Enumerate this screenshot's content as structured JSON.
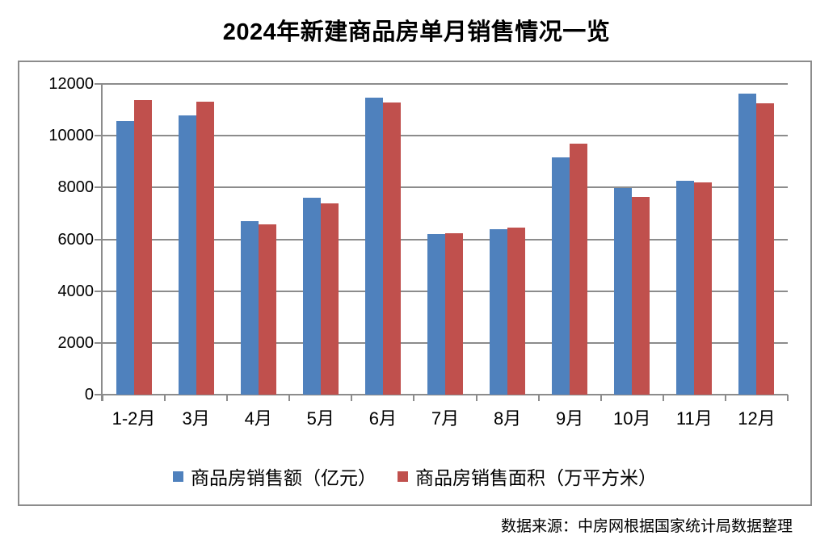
{
  "title": "2024年新建商品房单月销售情况一览",
  "source_note": "数据来源：中房网根据国家统计局数据整理",
  "chart_data": {
    "type": "bar",
    "title": "2024年新建商品房单月销售情况一览",
    "categories": [
      "1-2月",
      "3月",
      "4月",
      "5月",
      "6月",
      "7月",
      "8月",
      "9月",
      "10月",
      "11月",
      "12月"
    ],
    "series": [
      {
        "name": "商品房销售额（亿元）",
        "color": "#4F81BD",
        "values": [
          10566,
          10789,
          6712,
          7598,
          11468,
          6197,
          6393,
          9157,
          7975,
          8270,
          11625
        ]
      },
      {
        "name": "商品房销售面积（万平方米）",
        "color": "#C0504D",
        "values": [
          11369,
          11299,
          6584,
          7390,
          11274,
          6233,
          6453,
          9682,
          7646,
          8188,
          11267
        ]
      }
    ],
    "xlabel": "",
    "ylabel": "",
    "ylim": [
      0,
      12000
    ],
    "yticks": [
      0,
      2000,
      4000,
      6000,
      8000,
      10000,
      12000
    ],
    "grid": true,
    "legend_position": "bottom",
    "axis_color": "#8C8C8C"
  }
}
